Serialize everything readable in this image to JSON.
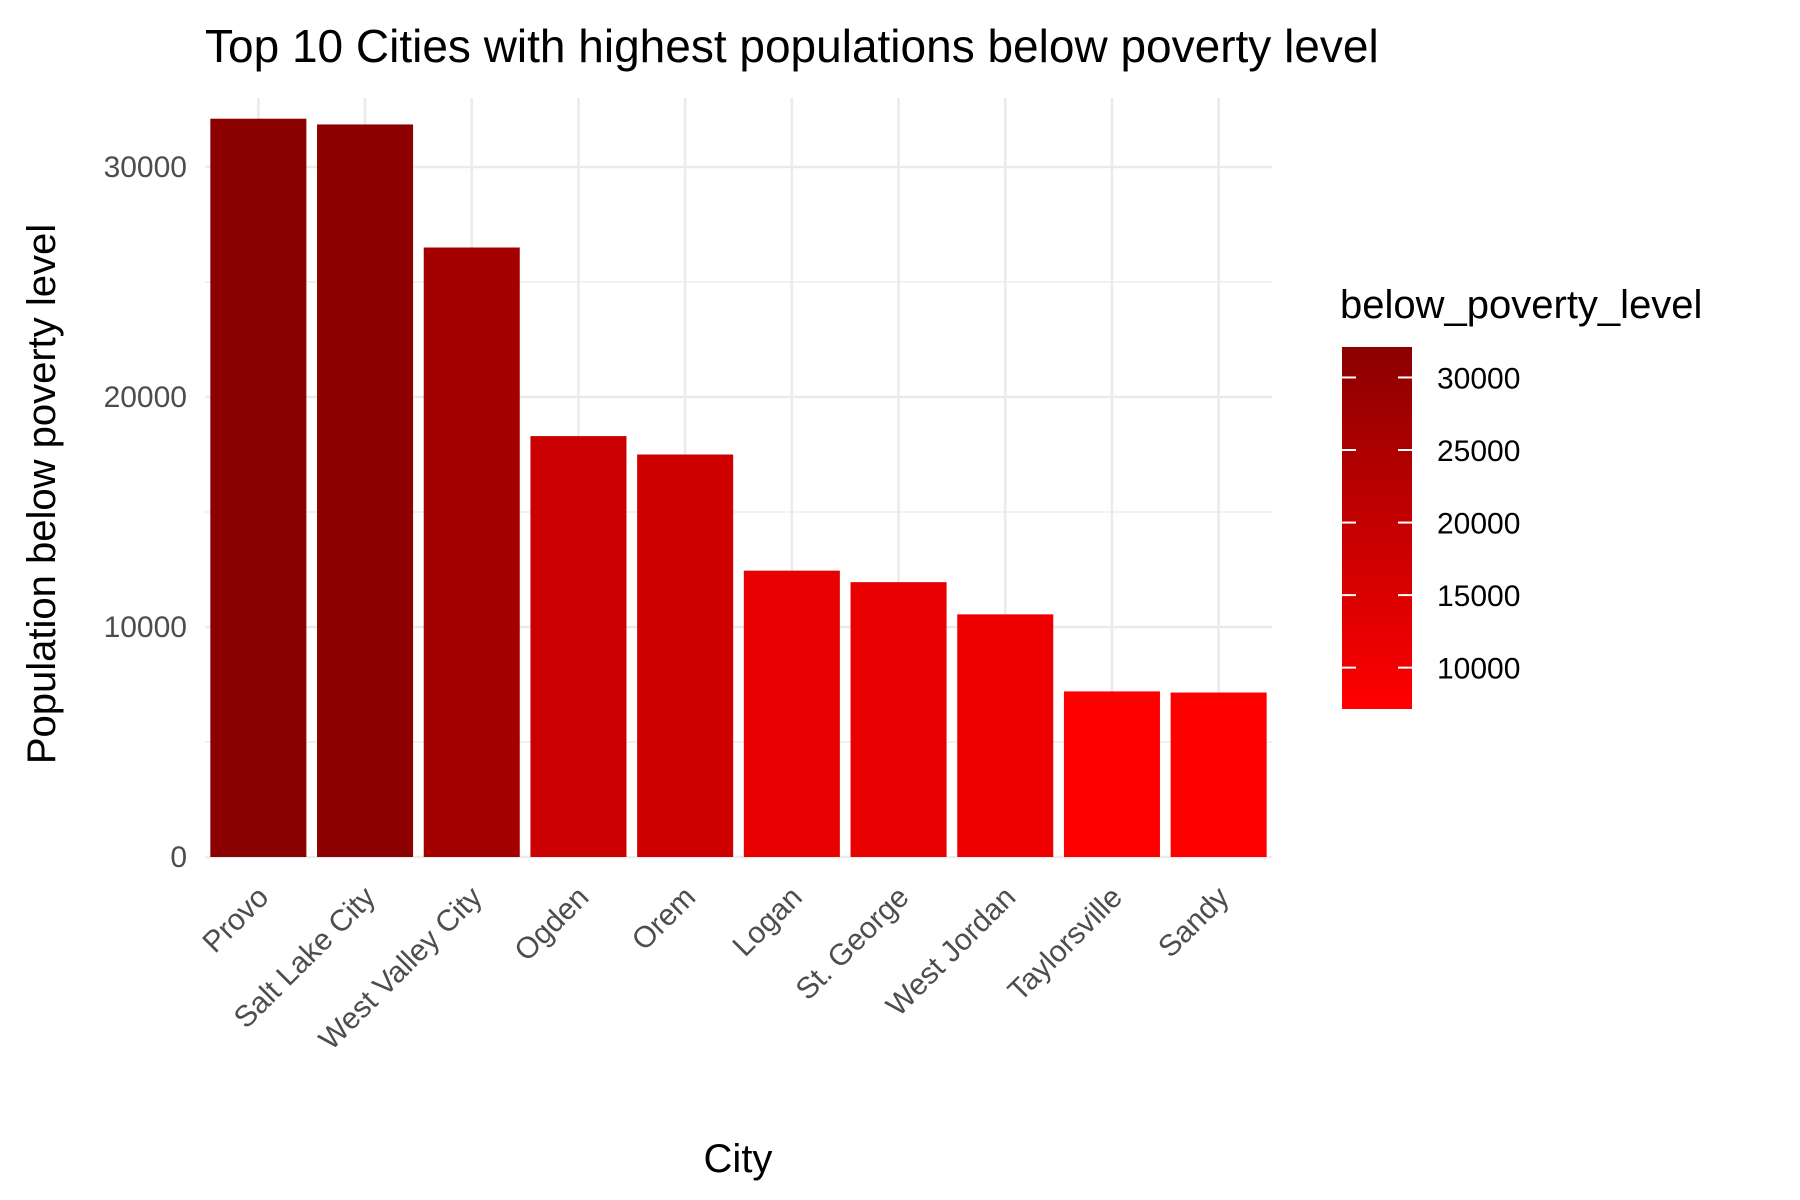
{
  "chart_data": {
    "type": "bar",
    "title": "Top 10 Cities with highest populations below poverty level",
    "xlabel": "City",
    "ylabel": "Population below poverty level",
    "categories": [
      "Provo",
      "Salt Lake City",
      "West Valley City",
      "Ogden",
      "Orem",
      "Logan",
      "St. George",
      "West Jordan",
      "Taylorsville",
      "Sandy"
    ],
    "values": [
      32100,
      31850,
      26500,
      18300,
      17500,
      12450,
      11950,
      10550,
      7200,
      7150
    ],
    "ylim": [
      0,
      33000
    ],
    "yticks": [
      0,
      10000,
      20000,
      30000
    ],
    "ytick_labels": [
      "0",
      "10000",
      "20000",
      "30000"
    ],
    "grid": true,
    "legend": {
      "title": "below_poverty_level",
      "placement": "right",
      "type": "gradient",
      "range": [
        7150,
        32100
      ],
      "ticks": [
        10000,
        15000,
        20000,
        25000,
        30000
      ],
      "tick_labels": [
        "10000",
        "15000",
        "20000",
        "25000",
        "30000"
      ],
      "color_low": "#ff0000",
      "color_high": "#8b0000"
    }
  }
}
